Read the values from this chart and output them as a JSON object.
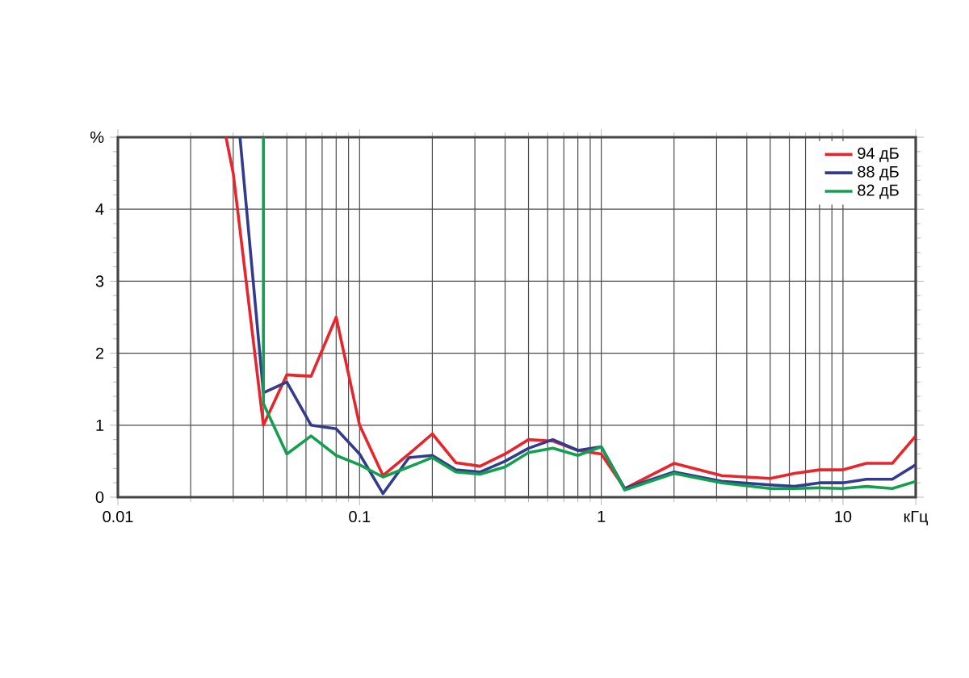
{
  "chart_data": {
    "type": "line",
    "log": "x",
    "grid": true,
    "legend": "top right",
    "marker": "none",
    "line_style": "solid",
    "xlim": [
      0.01,
      20
    ],
    "ylim": [
      0,
      5
    ],
    "xticks": [
      0.01,
      0.1,
      1,
      10,
      {
        "value": 20,
        "label": "кГц"
      }
    ],
    "yticks": [
      0,
      1,
      2,
      3,
      4,
      {
        "value": 5,
        "label": "%"
      }
    ],
    "series": [
      {
        "name": "94 дБ",
        "color": "#e8242c",
        "x": [
          0.028,
          0.03,
          0.04,
          0.05,
          0.063,
          0.08,
          0.1,
          0.125,
          0.16,
          0.2,
          0.25,
          0.315,
          0.4,
          0.5,
          0.63,
          0.8,
          1,
          1.25,
          2,
          3.15,
          5,
          6.3,
          8,
          10,
          12.5,
          16,
          20
        ],
        "values": [
          5,
          4.5,
          1.0,
          1.7,
          1.68,
          2.5,
          1.0,
          0.3,
          0.6,
          0.88,
          0.48,
          0.43,
          0.6,
          0.8,
          0.78,
          0.65,
          0.6,
          0.12,
          0.47,
          0.3,
          0.26,
          0.33,
          0.38,
          0.38,
          0.47,
          0.47,
          0.85
        ]
      },
      {
        "name": "88 дБ",
        "color": "#333c8c",
        "x": [
          0.032,
          0.04,
          0.05,
          0.063,
          0.08,
          0.1,
          0.125,
          0.16,
          0.2,
          0.25,
          0.315,
          0.4,
          0.5,
          0.63,
          0.8,
          1,
          1.25,
          2,
          3.15,
          5,
          6.3,
          8,
          10,
          12.5,
          16,
          20
        ],
        "values": [
          5,
          1.45,
          1.6,
          1.0,
          0.95,
          0.6,
          0.05,
          0.55,
          0.58,
          0.38,
          0.35,
          0.5,
          0.68,
          0.8,
          0.65,
          0.7,
          0.12,
          0.35,
          0.22,
          0.17,
          0.15,
          0.2,
          0.2,
          0.25,
          0.25,
          0.45
        ]
      },
      {
        "name": "82 дБ",
        "color": "#12a050",
        "x": [
          0.04,
          0.04,
          0.05,
          0.063,
          0.08,
          0.1,
          0.125,
          0.16,
          0.2,
          0.25,
          0.315,
          0.4,
          0.5,
          0.63,
          0.8,
          1,
          1.25,
          2,
          3.15,
          5,
          6.3,
          8,
          10,
          12.5,
          16,
          20
        ],
        "values": [
          5,
          1.3,
          0.6,
          0.85,
          0.58,
          0.45,
          0.28,
          0.42,
          0.55,
          0.35,
          0.32,
          0.42,
          0.62,
          0.68,
          0.58,
          0.7,
          0.1,
          0.33,
          0.2,
          0.12,
          0.12,
          0.13,
          0.12,
          0.15,
          0.12,
          0.22
        ]
      }
    ]
  }
}
